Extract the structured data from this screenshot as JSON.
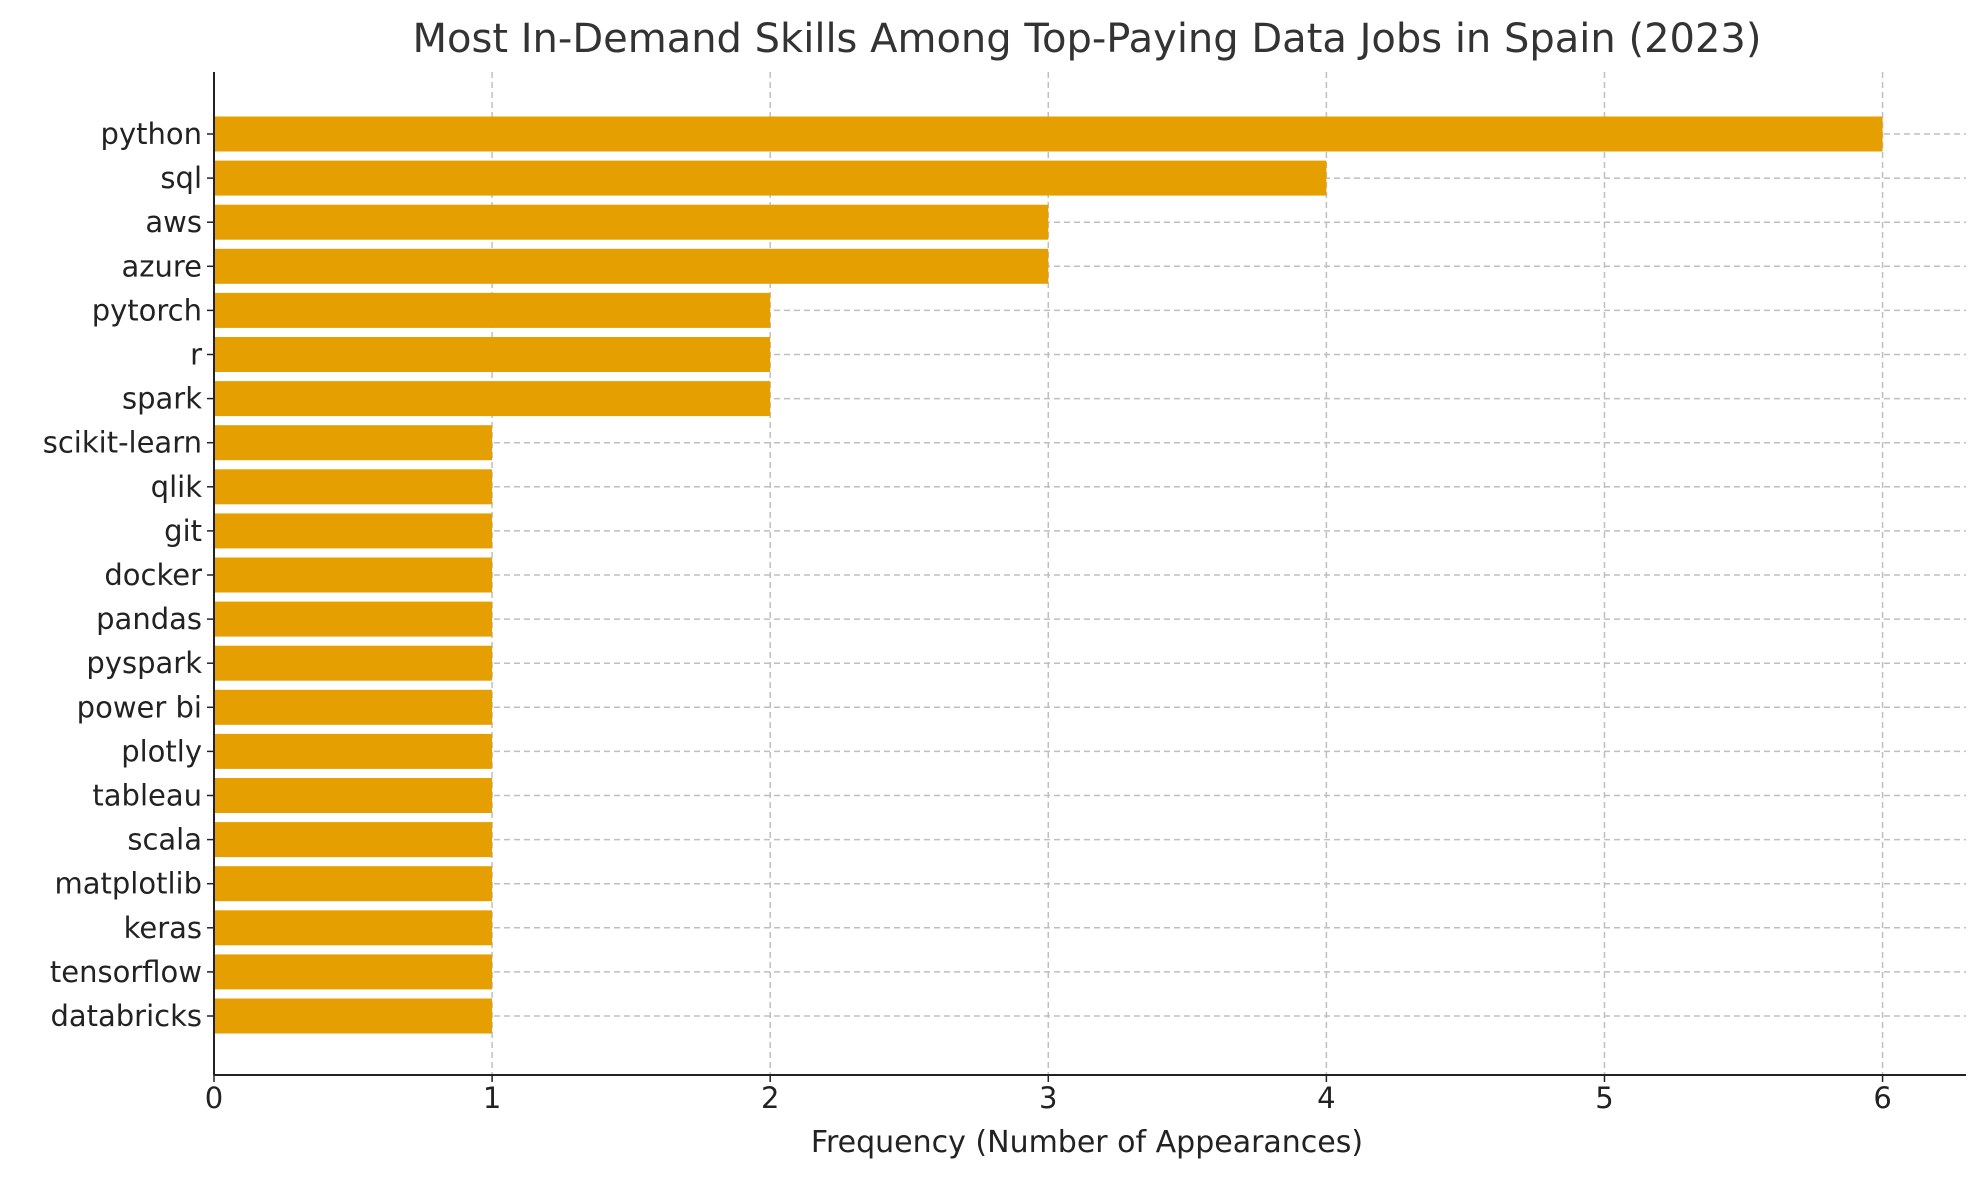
{
  "chart_data": {
    "type": "bar",
    "orientation": "horizontal",
    "title": "Most In-Demand Skills Among Top-Paying Data Jobs in Spain (2023)",
    "xlabel": "Frequency (Number of Appearances)",
    "ylabel": "",
    "categories": [
      "python",
      "sql",
      "aws",
      "azure",
      "pytorch",
      "r",
      "spark",
      "scikit-learn",
      "qlik",
      "git",
      "docker",
      "pandas",
      "pyspark",
      "power bi",
      "plotly",
      "tableau",
      "scala",
      "matplotlib",
      "keras",
      "tensorflow",
      "databricks"
    ],
    "values": [
      6,
      4,
      3,
      3,
      2,
      2,
      2,
      1,
      1,
      1,
      1,
      1,
      1,
      1,
      1,
      1,
      1,
      1,
      1,
      1,
      1
    ],
    "xlim": [
      0,
      6.3
    ],
    "xticks": [
      "0",
      "1",
      "2",
      "3",
      "4",
      "5",
      "6"
    ],
    "grid": true,
    "bar_color": "#E69F00",
    "grid_color": "#bfbfbf",
    "axis_color": "#222222"
  }
}
